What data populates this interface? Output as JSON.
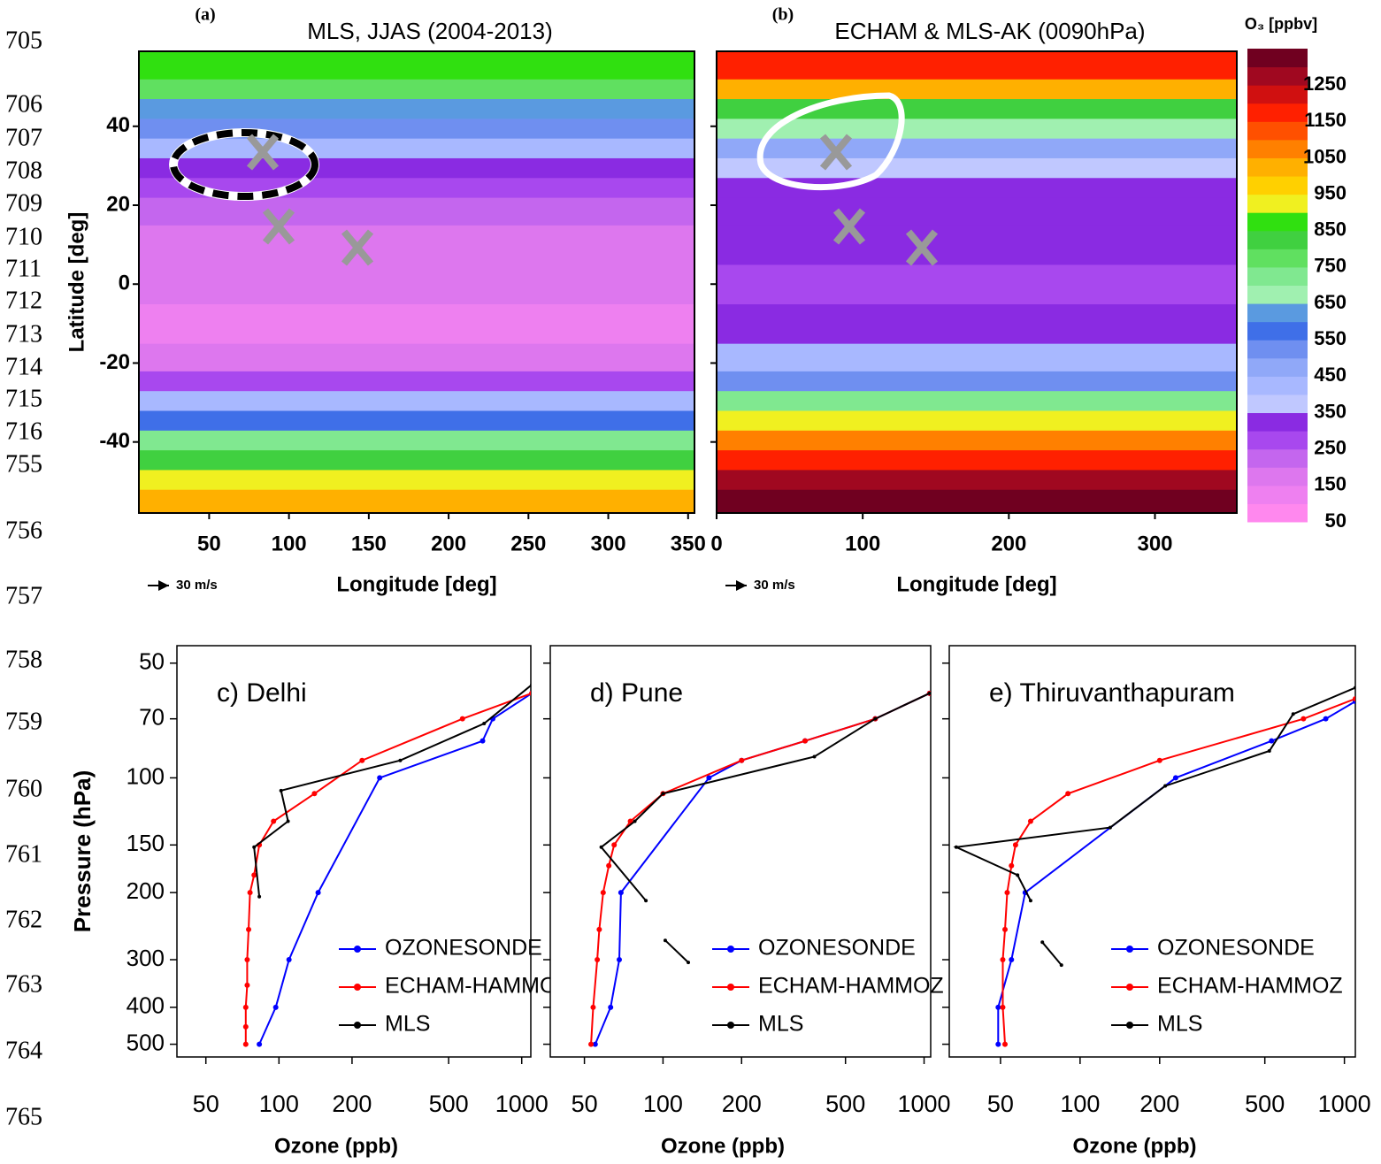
{
  "line_numbers": [
    705,
    706,
    707,
    708,
    709,
    710,
    711,
    712,
    713,
    714,
    715,
    716,
    755,
    756,
    757,
    758,
    759,
    760,
    761,
    762,
    763,
    764,
    765
  ],
  "chart_data": [
    {
      "type": "contour",
      "panel_label": "(a)",
      "title": "MLS, JJAS (2004-2013)",
      "x_label": "Longitude [deg]",
      "y_label": "Latitude [deg]",
      "vector_scale_label": "30 m/s",
      "xlim": [
        6,
        354
      ],
      "ylim": [
        -58,
        59
      ],
      "xticks": [
        50,
        100,
        150,
        200,
        250,
        300,
        350
      ],
      "yticks": [
        -40,
        -20,
        0,
        20,
        40
      ],
      "lat_bins": [
        -58,
        -52,
        -47,
        -42,
        -37,
        -32,
        -27,
        -22,
        -15,
        -5,
        5,
        15,
        22,
        27,
        32,
        37,
        42,
        47,
        52,
        59
      ],
      "values": [
        1000,
        900,
        800,
        700,
        550,
        400,
        250,
        150,
        120,
        150,
        150,
        200,
        250,
        300,
        400,
        500,
        600,
        750,
        850
      ]
    },
    {
      "type": "contour",
      "panel_label": "(b)",
      "title": "ECHAM & MLS-AK  (0090hPa)",
      "x_label": "Longitude [deg]",
      "vector_scale_label": "30 m/s",
      "xlim": [
        0,
        356
      ],
      "ylim": [
        -58,
        59
      ],
      "xticks": [
        0,
        100,
        200,
        300
      ],
      "yticks": [
        -40,
        -20,
        0,
        20,
        40
      ],
      "ytick_labels": false,
      "lat_bins": [
        -58,
        -52,
        -47,
        -42,
        -37,
        -32,
        -27,
        -22,
        -15,
        -5,
        5,
        15,
        22,
        27,
        32,
        37,
        42,
        47,
        52,
        59
      ],
      "values": [
        1300,
        1250,
        1150,
        1050,
        900,
        700,
        500,
        400,
        300,
        250,
        300,
        300,
        300,
        350,
        450,
        650,
        800,
        1000,
        1150
      ],
      "colorbar": {
        "label": "O₃ [ppbv]",
        "clim": [
          50,
          1350
        ],
        "ticks": [
          50,
          150,
          250,
          350,
          450,
          550,
          650,
          750,
          850,
          950,
          1050,
          1150,
          1250
        ],
        "colors": [
          "#ff88ee",
          "#ee80f0",
          "#dd77ee",
          "#c466ee",
          "#a848ee",
          "#8a2be2",
          "#c0c8ff",
          "#a8b8ff",
          "#90a8f8",
          "#6f8ff0",
          "#3f6fe8",
          "#5a9ae0",
          "#a0f0b0",
          "#80e890",
          "#60e060",
          "#40d040",
          "#30e010",
          "#f0f020",
          "#ffd000",
          "#ffb000",
          "#ff8000",
          "#ff5000",
          "#ff2000",
          "#d01010",
          "#a00820",
          "#700020"
        ]
      }
    },
    {
      "type": "profile",
      "title": "c) Delhi",
      "x_label": "Ozone (ppb)",
      "y_label": "Pressure (hPa)",
      "log_x": true,
      "log_y": true,
      "xlim": [
        38,
        1090
      ],
      "ylim": [
        540,
        45
      ],
      "xticks": [
        50,
        100,
        200,
        500,
        1000
      ],
      "yticks": [
        50,
        70,
        100,
        150,
        200,
        300,
        400,
        500
      ],
      "legend": "lower right",
      "series": [
        {
          "name": "OZONESONDE",
          "color": "#0000ff",
          "x": [
            83,
            97,
            110,
            145,
            260,
            690,
            760,
            1100
          ],
          "values": [
            500,
            400,
            300,
            200,
            100,
            80,
            70,
            60
          ]
        },
        {
          "name": "ECHAM-HAMMOZ",
          "color": "#ff0000",
          "x": [
            73,
            73,
            73,
            74,
            74,
            75,
            76,
            79,
            83,
            95,
            140,
            220,
            570,
            1100
          ],
          "values": [
            500,
            450,
            400,
            350,
            300,
            250,
            200,
            180,
            150,
            130,
            110,
            90,
            70,
            60
          ]
        },
        {
          "name": "MLS",
          "color": "#000000",
          "x": [
            83,
            79,
            109,
            102,
            316,
            700,
            1100
          ],
          "values": [
            205,
            152,
            130,
            108,
            90,
            72,
            57
          ]
        }
      ]
    },
    {
      "type": "profile",
      "title": "d) Pune",
      "x_label": "Ozone (ppb)",
      "log_x": true,
      "log_y": true,
      "xlim": [
        37,
        1060
      ],
      "ylim": [
        540,
        45
      ],
      "xticks": [
        50,
        100,
        200,
        500,
        1000
      ],
      "yticks": [
        50,
        70,
        100,
        150,
        200,
        300,
        400,
        500
      ],
      "ytick_labels": false,
      "legend": "lower right",
      "series": [
        {
          "name": "OZONESONDE",
          "color": "#0000ff",
          "x": [
            55,
            63,
            68,
            69,
            150,
            200,
            350,
            650,
            1050
          ],
          "values": [
            500,
            400,
            300,
            200,
            100,
            90,
            80,
            70,
            60
          ]
        },
        {
          "name": "ECHAM-HAMMOZ",
          "color": "#ff0000",
          "x": [
            53,
            54,
            56,
            57,
            59,
            62,
            65,
            75,
            100,
            200,
            350,
            650,
            1050
          ],
          "values": [
            500,
            400,
            300,
            250,
            200,
            170,
            150,
            130,
            110,
            90,
            80,
            70,
            60
          ]
        },
        {
          "name": "MLS",
          "color": "#000000",
          "x": [
            86,
            58,
            78,
            100,
            380,
            650,
            1050,
            null,
            102,
            125
          ],
          "values": [
            210,
            152,
            130,
            110,
            88,
            70,
            60,
            null,
            267,
            305
          ]
        }
      ]
    },
    {
      "type": "profile",
      "title": "e) Thiruvanthapuram",
      "x_label": "Ozone (ppb)",
      "log_x": true,
      "log_y": true,
      "xlim": [
        32,
        1100
      ],
      "ylim": [
        540,
        45
      ],
      "xticks": [
        50,
        100,
        200,
        500,
        1000
      ],
      "yticks": [
        50,
        70,
        100,
        150,
        200,
        300,
        400,
        500
      ],
      "ytick_labels": false,
      "legend": "lower right",
      "series": [
        {
          "name": "OZONESONDE",
          "color": "#0000ff",
          "x": [
            49,
            49,
            55,
            62,
            230,
            530,
            850,
            1100
          ],
          "values": [
            500,
            400,
            300,
            200,
            100,
            80,
            70,
            63
          ]
        },
        {
          "name": "ECHAM-HAMMOZ",
          "color": "#ff0000",
          "x": [
            52,
            51,
            51,
            52,
            53,
            55,
            57,
            65,
            90,
            200,
            700,
            1100
          ],
          "values": [
            500,
            400,
            300,
            250,
            200,
            170,
            150,
            130,
            110,
            90,
            70,
            62
          ]
        },
        {
          "name": "MLS",
          "color": "#000000",
          "x": [
            65,
            58,
            34,
            130,
            210,
            520,
            640,
            1100,
            null,
            72,
            85
          ],
          "values": [
            210,
            180,
            152,
            135,
            105,
            85,
            68,
            58,
            null,
            270,
            310
          ]
        }
      ]
    }
  ]
}
